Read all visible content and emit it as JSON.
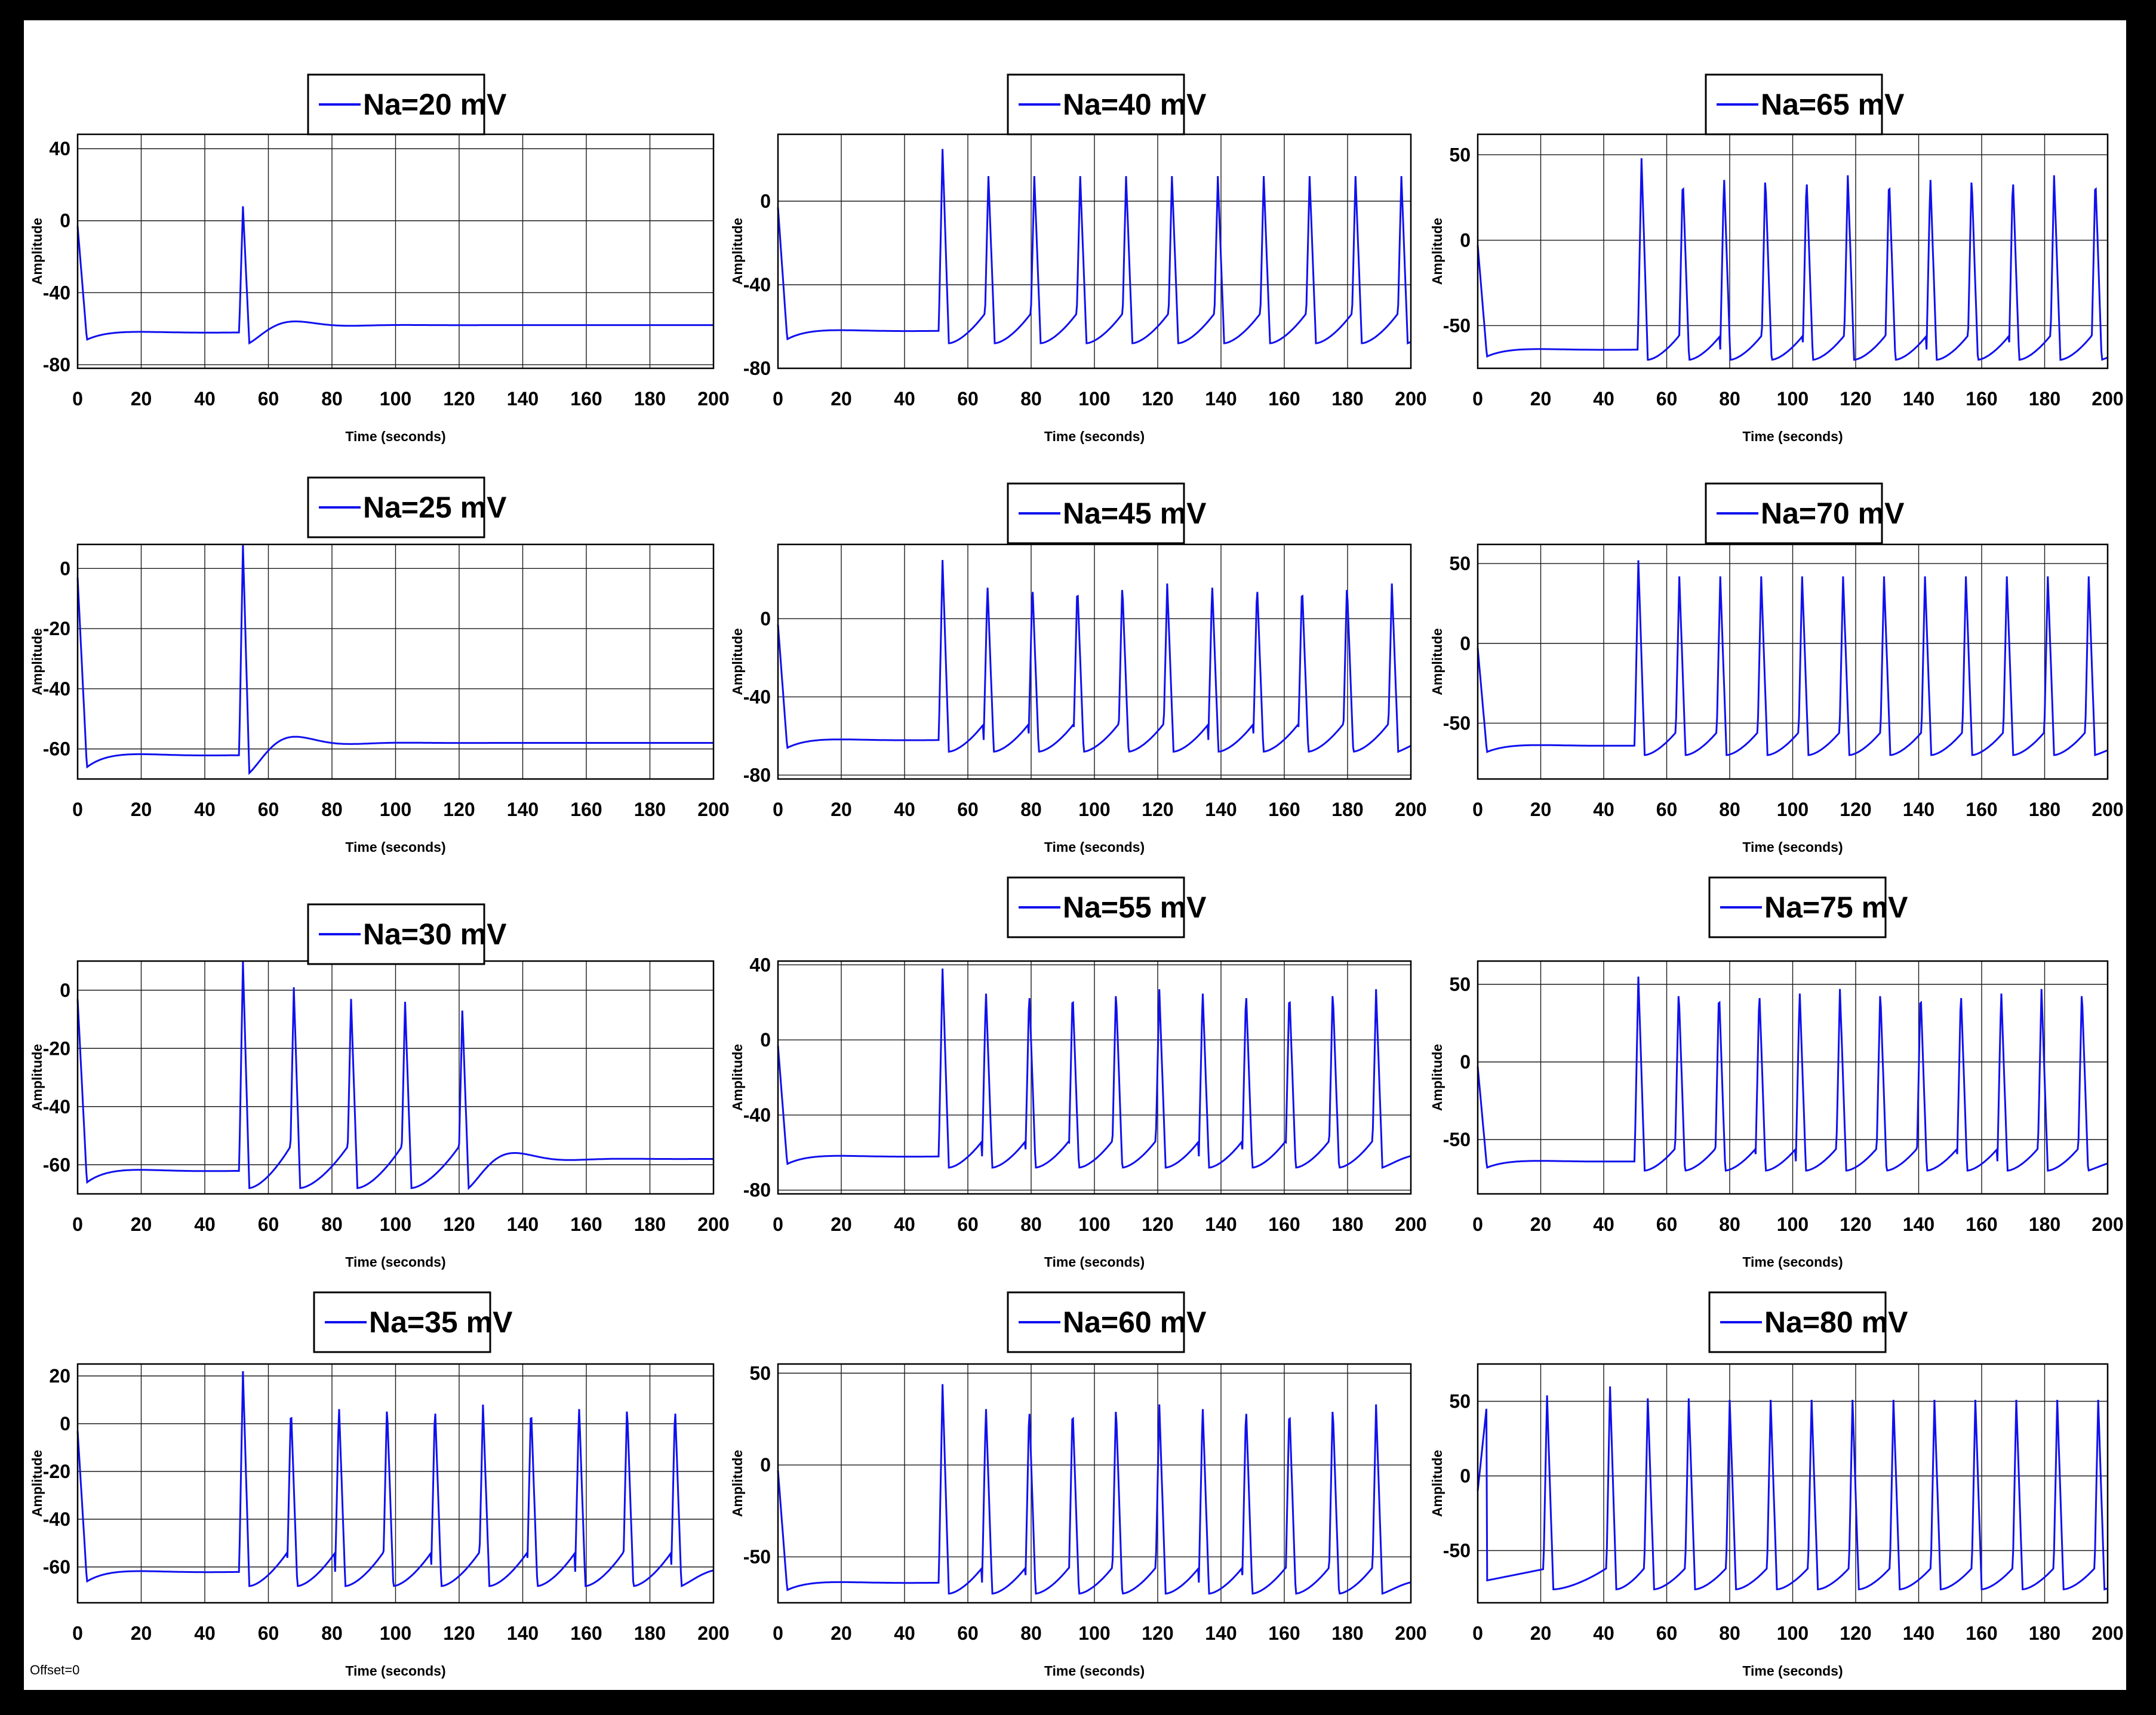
{
  "figure": {
    "offset_label": "Offset=0",
    "colors": {
      "trace": "#1010ee",
      "grid": "#1a1a1a",
      "frame": "#000000"
    }
  },
  "chart_data": [
    {
      "type": "line",
      "legend": "Na=20 mV",
      "xlabel": "Time (seconds)",
      "ylabel": "Amplitude",
      "xlim": [
        0,
        200
      ],
      "ylim": [
        -82,
        48
      ],
      "xticks": [
        0,
        20,
        40,
        60,
        80,
        100,
        120,
        140,
        160,
        180,
        200
      ],
      "yticks": [
        -80,
        -40,
        0,
        40
      ],
      "ytick_labels": [
        "-80",
        "-40",
        "0",
        "40"
      ],
      "grid": true,
      "rest": -62,
      "first_spike_t": 52,
      "first_peak": 8,
      "spike_period": null,
      "spike_peak": null,
      "n_spikes": 1,
      "final_value": -58,
      "end_t": 200
    },
    {
      "type": "line",
      "legend": "Na=25 mV",
      "xlabel": "Time (seconds)",
      "ylabel": "Amplitude",
      "xlim": [
        0,
        200
      ],
      "ylim": [
        -70,
        8
      ],
      "xticks": [
        0,
        20,
        40,
        60,
        80,
        100,
        120,
        140,
        160,
        180,
        200
      ],
      "yticks": [
        -60,
        -40,
        -20,
        0
      ],
      "ytick_labels": [
        "-60",
        "-40",
        "-20",
        "0"
      ],
      "grid": true,
      "rest": -62,
      "first_spike_t": 52,
      "first_peak": 8,
      "spike_period": null,
      "spike_peak": null,
      "n_spikes": 1,
      "final_value": -58,
      "end_t": 200
    },
    {
      "type": "line",
      "legend": "Na=30 mV",
      "xlabel": "Time (seconds)",
      "ylabel": "Amplitude",
      "xlim": [
        0,
        200
      ],
      "ylim": [
        -70,
        10
      ],
      "xticks": [
        0,
        20,
        40,
        60,
        80,
        100,
        120,
        140,
        160,
        180,
        200
      ],
      "yticks": [
        -60,
        -40,
        -20,
        0
      ],
      "ytick_labels": [
        "-60",
        "-40",
        "-20",
        "0"
      ],
      "grid": true,
      "rest": -62,
      "first_spike_t": 52,
      "first_peak": 10,
      "spike_times": [
        52,
        68,
        86,
        103,
        121
      ],
      "spike_peaks": [
        10,
        1,
        -3,
        -4,
        -7
      ],
      "final_value": -58,
      "end_t": 200
    },
    {
      "type": "line",
      "legend": "Na=35 mV",
      "xlabel": "Time (seconds)",
      "ylabel": "Amplitude",
      "xlim": [
        0,
        200
      ],
      "ylim": [
        -75,
        25
      ],
      "xticks": [
        0,
        20,
        40,
        60,
        80,
        100,
        120,
        140,
        160,
        180,
        200
      ],
      "yticks": [
        -60,
        -40,
        -20,
        0,
        20
      ],
      "ytick_labels": [
        "-60",
        "-40",
        "-20",
        "0",
        "20"
      ],
      "grid": true,
      "rest": -62,
      "first_spike_t": 52,
      "first_peak": 22,
      "spike_period": 15.1,
      "spike_peak": 8,
      "n_spikes": 10,
      "end_t": 200
    },
    {
      "type": "line",
      "legend": "Na=40 mV",
      "xlabel": "Time (seconds)",
      "ylabel": "Amplitude",
      "xlim": [
        0,
        200
      ],
      "ylim": [
        -80,
        32
      ],
      "xticks": [
        0,
        20,
        40,
        60,
        80,
        100,
        120,
        140,
        160,
        180,
        200
      ],
      "yticks": [
        -80,
        -40,
        0
      ],
      "ytick_labels": [
        "-80",
        "-40",
        "0"
      ],
      "grid": true,
      "rest": -62,
      "first_spike_t": 52,
      "first_peak": 25,
      "spike_period": 14.5,
      "spike_peak": 12,
      "n_spikes": 11,
      "end_t": 200
    },
    {
      "type": "line",
      "legend": "Na=45 mV",
      "xlabel": "Time (seconds)",
      "ylabel": "Amplitude",
      "xlim": [
        0,
        200
      ],
      "ylim": [
        -82,
        38
      ],
      "xticks": [
        0,
        20,
        40,
        60,
        80,
        100,
        120,
        140,
        160,
        180,
        200
      ],
      "yticks": [
        -80,
        -40,
        0
      ],
      "ytick_labels": [
        "-80",
        "-40",
        "0"
      ],
      "grid": true,
      "rest": -62,
      "first_spike_t": 52,
      "first_peak": 30,
      "spike_period": 14.2,
      "spike_peak": 18,
      "n_spikes": 11,
      "end_t": 200
    },
    {
      "type": "line",
      "legend": "Na=55 mV",
      "xlabel": "Time (seconds)",
      "ylabel": "Amplitude",
      "xlim": [
        0,
        200
      ],
      "ylim": [
        -82,
        42
      ],
      "xticks": [
        0,
        20,
        40,
        60,
        80,
        100,
        120,
        140,
        160,
        180,
        200
      ],
      "yticks": [
        -80,
        -40,
        0,
        40
      ],
      "ytick_labels": [
        "-80",
        "-40",
        "0",
        "40"
      ],
      "grid": true,
      "rest": -62,
      "first_spike_t": 52,
      "first_peak": 38,
      "spike_period": 13.7,
      "spike_peak": 27,
      "n_spikes": 11,
      "end_t": 200
    },
    {
      "type": "line",
      "legend": "Na=60 mV",
      "xlabel": "Time (seconds)",
      "ylabel": "Amplitude",
      "xlim": [
        0,
        200
      ],
      "ylim": [
        -75,
        55
      ],
      "xticks": [
        0,
        20,
        40,
        60,
        80,
        100,
        120,
        140,
        160,
        180,
        200
      ],
      "yticks": [
        -50,
        0,
        50
      ],
      "ytick_labels": [
        "-50",
        "0",
        "50"
      ],
      "grid": true,
      "rest": -64,
      "first_spike_t": 52,
      "first_peak": 44,
      "spike_period": 13.7,
      "spike_peak": 33,
      "n_spikes": 11,
      "end_t": 200
    },
    {
      "type": "line",
      "legend": "Na=65 mV",
      "xlabel": "Time (seconds)",
      "ylabel": "Amplitude",
      "xlim": [
        0,
        200
      ],
      "ylim": [
        -75,
        62
      ],
      "xticks": [
        0,
        20,
        40,
        60,
        80,
        100,
        120,
        140,
        160,
        180,
        200
      ],
      "yticks": [
        -50,
        0,
        50
      ],
      "ytick_labels": [
        "-50",
        "0",
        "50"
      ],
      "grid": true,
      "rest": -64,
      "first_spike_t": 52,
      "first_peak": 48,
      "spike_period": 13.1,
      "spike_peak": 38,
      "n_spikes": 12,
      "end_t": 200
    },
    {
      "type": "line",
      "legend": "Na=70 mV",
      "xlabel": "Time (seconds)",
      "ylabel": "Amplitude",
      "xlim": [
        0,
        200
      ],
      "ylim": [
        -85,
        62
      ],
      "xticks": [
        0,
        20,
        40,
        60,
        80,
        100,
        120,
        140,
        160,
        180,
        200
      ],
      "yticks": [
        -50,
        0,
        50
      ],
      "ytick_labels": [
        "-50",
        "0",
        "50"
      ],
      "grid": true,
      "rest": -64,
      "first_spike_t": 51,
      "first_peak": 52,
      "spike_period": 13.0,
      "spike_peak": 42,
      "n_spikes": 12,
      "end_t": 200
    },
    {
      "type": "line",
      "legend": "Na=75 mV",
      "xlabel": "Time (seconds)",
      "ylabel": "Amplitude",
      "xlim": [
        0,
        200
      ],
      "ylim": [
        -85,
        65
      ],
      "xticks": [
        0,
        20,
        40,
        60,
        80,
        100,
        120,
        140,
        160,
        180,
        200
      ],
      "yticks": [
        -50,
        0,
        50
      ],
      "ytick_labels": [
        "-50",
        "0",
        "50"
      ],
      "grid": true,
      "rest": -64,
      "first_spike_t": 51,
      "first_peak": 55,
      "spike_period": 12.8,
      "spike_peak": 47,
      "n_spikes": 12,
      "end_t": 200
    },
    {
      "type": "line",
      "legend": "Na=80 mV",
      "xlabel": "Time (seconds)",
      "ylabel": "Amplitude",
      "xlim": [
        0,
        200
      ],
      "ylim": [
        -85,
        75
      ],
      "xticks": [
        0,
        20,
        40,
        60,
        80,
        100,
        120,
        140,
        160,
        180,
        200
      ],
      "yticks": [
        -50,
        0,
        50
      ],
      "ytick_labels": [
        "-50",
        "0",
        "50"
      ],
      "grid": true,
      "rest": -70,
      "spike_times": [
        22,
        42,
        54,
        67,
        80,
        93,
        106,
        119,
        132,
        145,
        158,
        171,
        184,
        197
      ],
      "spike_peaks": [
        54,
        60,
        52,
        52,
        51,
        51,
        51,
        51,
        51,
        51,
        51,
        51,
        51,
        51
      ],
      "end_t": 200
    }
  ]
}
